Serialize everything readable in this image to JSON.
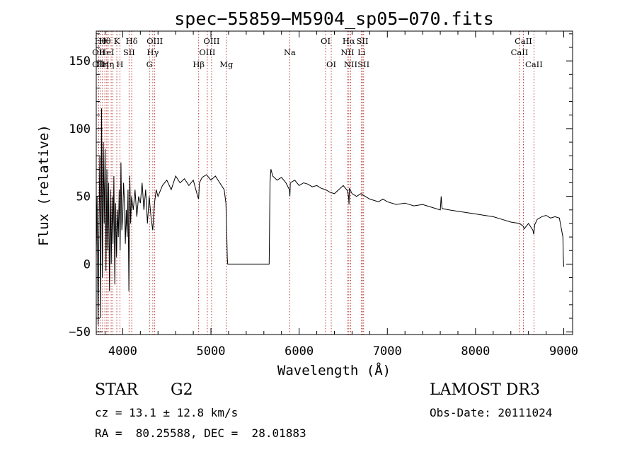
{
  "chart_data": {
    "type": "line",
    "title": "spec−55859−M5904_sp05−070.fits",
    "xlabel": "Wavelength (Å)",
    "ylabel": "Flux (relative)",
    "xlim": [
      3700,
      9100
    ],
    "ylim": [
      -52,
      172
    ],
    "xticks": [
      {
        "value": 4000,
        "label": "4000"
      },
      {
        "value": 5000,
        "label": "5000"
      },
      {
        "value": 6000,
        "label": "6000"
      },
      {
        "value": 7000,
        "label": "7000"
      },
      {
        "value": 8000,
        "label": "8000"
      },
      {
        "value": 9000,
        "label": "9000"
      }
    ],
    "yticks": [
      {
        "value": -50,
        "label": "−50"
      },
      {
        "value": 0,
        "label": "0"
      },
      {
        "value": 50,
        "label": "50"
      },
      {
        "value": 100,
        "label": "100"
      },
      {
        "value": 150,
        "label": "150"
      }
    ],
    "line_color": "#000000",
    "marker_color": "#b22222",
    "series": [
      {
        "name": "flux",
        "x": [
          3700,
          3710,
          3720,
          3730,
          3740,
          3750,
          3760,
          3770,
          3780,
          3790,
          3800,
          3810,
          3820,
          3830,
          3840,
          3850,
          3860,
          3870,
          3880,
          3890,
          3900,
          3910,
          3920,
          3930,
          3940,
          3950,
          3960,
          3970,
          3980,
          3990,
          4000,
          4010,
          4020,
          4030,
          4040,
          4050,
          4060,
          4070,
          4080,
          4090,
          4100,
          4120,
          4140,
          4160,
          4180,
          4200,
          4220,
          4240,
          4260,
          4280,
          4300,
          4320,
          4340,
          4360,
          4380,
          4400,
          4450,
          4500,
          4550,
          4600,
          4650,
          4700,
          4750,
          4800,
          4850,
          4860,
          4870,
          4900,
          4950,
          5000,
          5050,
          5100,
          5150,
          5170,
          5180,
          5185,
          5190,
          5300,
          5400,
          5500,
          5600,
          5660,
          5665,
          5670,
          5680,
          5700,
          5750,
          5800,
          5850,
          5890,
          5895,
          5900,
          5950,
          6000,
          6050,
          6100,
          6150,
          6200,
          6250,
          6300,
          6350,
          6400,
          6450,
          6500,
          6550,
          6560,
          6565,
          6570,
          6600,
          6650,
          6700,
          6750,
          6800,
          6850,
          6900,
          6950,
          7000,
          7100,
          7200,
          7300,
          7400,
          7500,
          7600,
          7610,
          7620,
          7700,
          7800,
          7900,
          8000,
          8100,
          8200,
          8300,
          8400,
          8500,
          8540,
          8550,
          8600,
          8650,
          8660,
          8670,
          8700,
          8750,
          8800,
          8850,
          8900,
          8950,
          8990,
          8995,
          9000
        ],
        "values": [
          5,
          50,
          -45,
          20,
          80,
          -40,
          115,
          -10,
          90,
          30,
          85,
          -5,
          70,
          10,
          60,
          -20,
          55,
          0,
          50,
          15,
          65,
          -15,
          45,
          5,
          40,
          20,
          55,
          10,
          75,
          25,
          35,
          60,
          45,
          15,
          40,
          20,
          55,
          -20,
          65,
          30,
          50,
          40,
          55,
          35,
          50,
          45,
          60,
          40,
          55,
          30,
          50,
          35,
          25,
          45,
          55,
          50,
          58,
          62,
          55,
          65,
          60,
          63,
          58,
          62,
          50,
          48,
          60,
          64,
          66,
          62,
          65,
          60,
          55,
          45,
          20,
          5,
          0,
          0,
          0,
          0,
          0,
          0,
          30,
          60,
          70,
          65,
          62,
          64,
          60,
          55,
          50,
          60,
          62,
          58,
          60,
          59,
          57,
          58,
          56,
          55,
          53,
          52,
          55,
          58,
          54,
          50,
          44,
          56,
          52,
          50,
          52,
          50,
          48,
          47,
          46,
          48,
          46,
          44,
          45,
          43,
          44,
          42,
          40,
          50,
          41,
          40,
          39,
          38,
          37,
          36,
          35,
          33,
          31,
          30,
          28,
          26,
          30,
          25,
          22,
          29,
          33,
          35,
          36,
          34,
          35,
          34,
          20,
          5,
          -2
        ]
      }
    ],
    "line_markers": [
      {
        "x": 3727,
        "label": "OII",
        "row": 2
      },
      {
        "x": 3727,
        "label": "OII",
        "row": 3
      },
      {
        "x": 3750,
        "label": "Hθ",
        "row": 1
      },
      {
        "x": 3771,
        "label": "Hη",
        "row": 3
      },
      {
        "x": 3797,
        "label": "Hθ",
        "row": 1
      },
      {
        "x": 3819,
        "label": "HeI",
        "row": 2
      },
      {
        "x": 3835,
        "label": "Hη",
        "row": 3
      },
      {
        "x": 3869,
        "label": "",
        "row": 0
      },
      {
        "x": 3889,
        "label": "",
        "row": 0
      },
      {
        "x": 3933,
        "label": "K",
        "row": 1
      },
      {
        "x": 3968,
        "label": "H",
        "row": 3
      },
      {
        "x": 4072,
        "label": "SII",
        "row": 2
      },
      {
        "x": 4102,
        "label": "Hδ",
        "row": 1
      },
      {
        "x": 4304,
        "label": "G",
        "row": 3
      },
      {
        "x": 4341,
        "label": "Hγ",
        "row": 2
      },
      {
        "x": 4363,
        "label": "OIII",
        "row": 1
      },
      {
        "x": 4861,
        "label": "Hβ",
        "row": 3
      },
      {
        "x": 4959,
        "label": "OIII",
        "row": 2
      },
      {
        "x": 5007,
        "label": "OIII",
        "row": 1
      },
      {
        "x": 5175,
        "label": "Mg",
        "row": 3
      },
      {
        "x": 5894,
        "label": "Na",
        "row": 2
      },
      {
        "x": 6300,
        "label": "OI",
        "row": 1
      },
      {
        "x": 6364,
        "label": "OI",
        "row": 3
      },
      {
        "x": 6548,
        "label": "NII",
        "row": 2
      },
      {
        "x": 6563,
        "label": "Hα",
        "row": 1
      },
      {
        "x": 6584,
        "label": "NII",
        "row": 3
      },
      {
        "x": 6707,
        "label": "Li",
        "row": 2
      },
      {
        "x": 6717,
        "label": "SII",
        "row": 1
      },
      {
        "x": 6731,
        "label": "SII",
        "row": 3
      },
      {
        "x": 8498,
        "label": "CaII",
        "row": 2
      },
      {
        "x": 8542,
        "label": "CaII",
        "row": 1
      },
      {
        "x": 8662,
        "label": "CaII",
        "row": 3
      }
    ]
  },
  "info": {
    "object_class": "STAR",
    "subclass": "G2",
    "survey": "LAMOST DR3",
    "velocity": "cz = 13.1 ± 12.8 km/s",
    "obs_date": "Obs-Date: 20111024",
    "coords": "RA =  80.25588, DEC =  28.01883"
  }
}
